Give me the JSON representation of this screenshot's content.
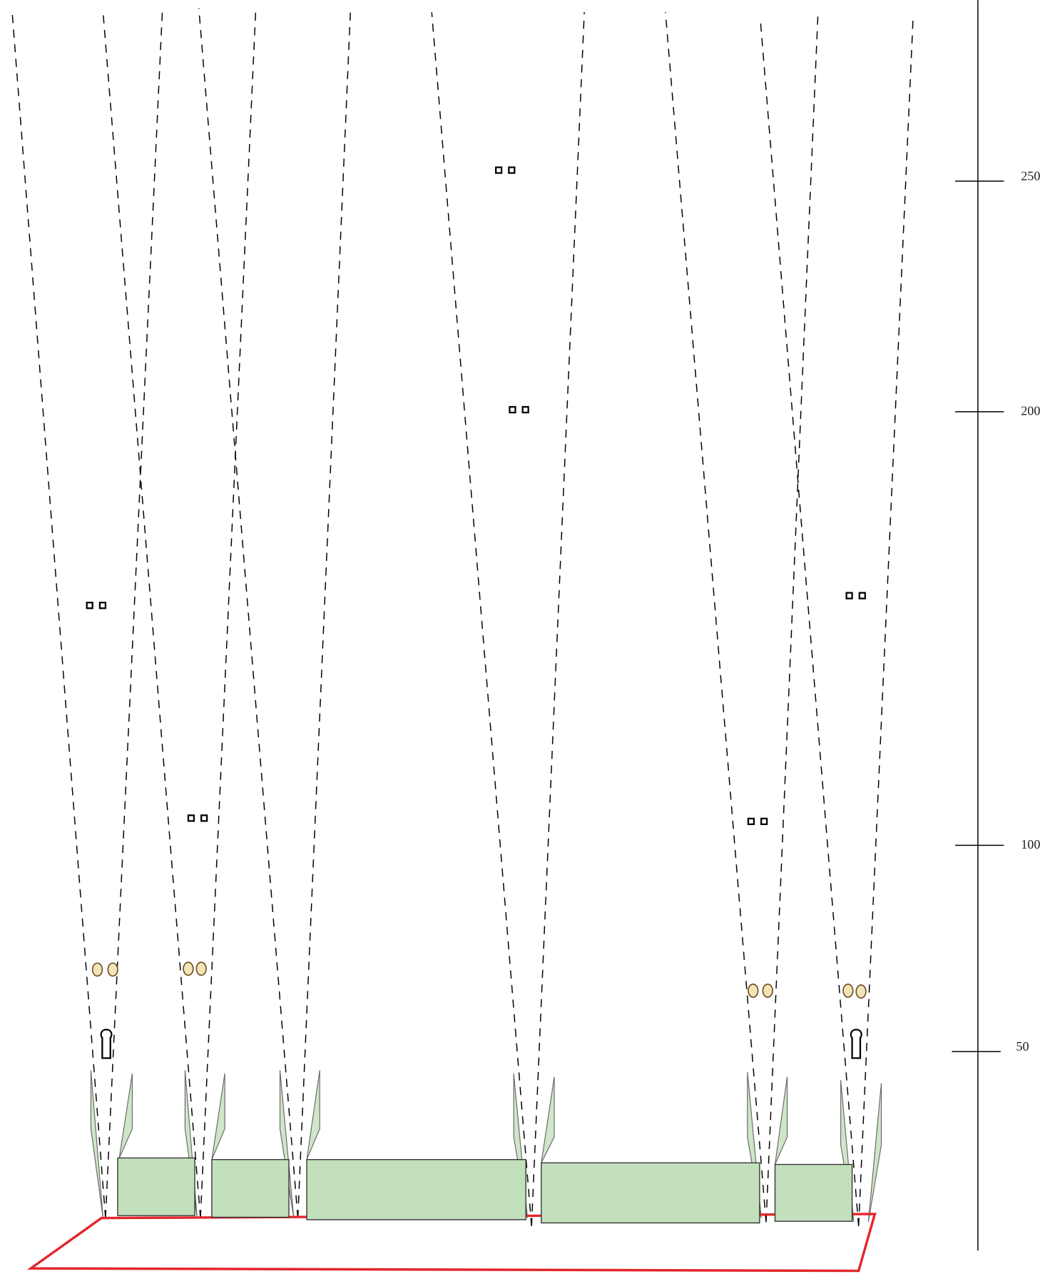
{
  "scale": {
    "labels": [
      "250",
      "200",
      "100",
      "50"
    ]
  }
}
